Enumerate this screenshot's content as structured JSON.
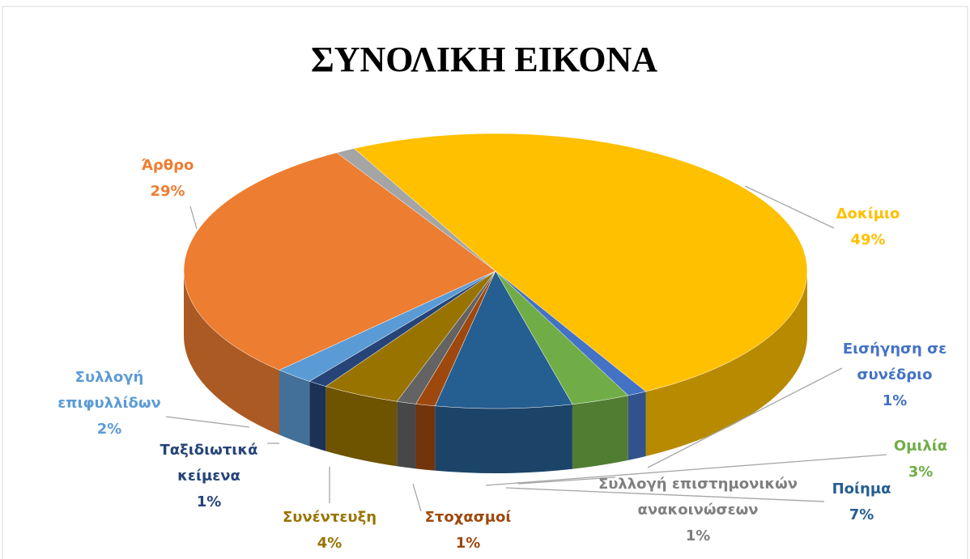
{
  "chart_data": {
    "type": "pie3d",
    "title": "ΣΥΝΟΛΙΚΗ ΕΙΚΟΝΑ",
    "categories": [
      "Δοκίμιο",
      "Εισήγηση σε συνέδριο",
      "Ομιλία",
      "Ποίημα",
      "Στοχασμοί",
      "Συλλογή επιστημονικών ανακοινώσεων",
      "Συνέντευξη",
      "Ταξιδιωτικά κείμενα",
      "Συλλογή επιφυλλίδων",
      "Άρθρο",
      null
    ],
    "values": [
      49,
      1,
      3,
      7,
      1,
      1,
      4,
      1,
      2,
      29,
      1
    ],
    "value_labels": [
      "49%",
      "1%",
      "3%",
      "7%",
      "1%",
      "1%",
      "4%",
      "1%",
      "2%",
      "29%",
      null
    ],
    "colors": [
      "#ffc000",
      "#4472c4",
      "#70ad47",
      "#255e91",
      "#9e480e",
      "#636363",
      "#997300",
      "#264478",
      "#5b9bd5",
      "#ed7d31",
      "#a5a5a5"
    ]
  }
}
